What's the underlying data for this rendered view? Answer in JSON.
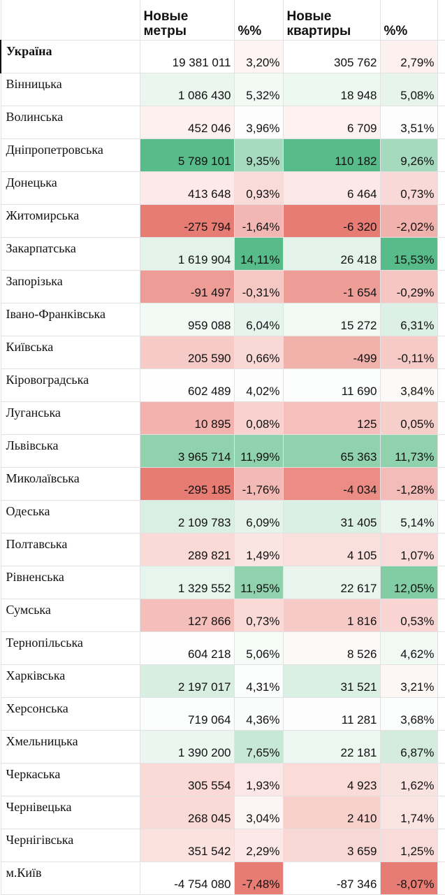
{
  "header": {
    "region_label": "",
    "col_meters": "Новые метры",
    "col_meters_pct": "%%",
    "col_flats": "Новые квартиры",
    "col_flats_pct": "%%"
  },
  "colors": {
    "green_strong": "#57bb8a",
    "red_strong": "#e67c73",
    "white": "#ffffff"
  },
  "rows": [
    {
      "name": "Україна",
      "bold": true,
      "meters": "19 381 011",
      "meters_pct": "3,20%",
      "flats": "305 762",
      "flats_pct": "2,79%",
      "bg": [
        "#ffffff",
        "#fdf4f3",
        "#ffffff",
        "#fdf1f0"
      ]
    },
    {
      "name": "Вінницька",
      "meters": "1 086 430",
      "meters_pct": "5,32%",
      "flats": "18 948",
      "flats_pct": "5,08%",
      "bg": [
        "#eaf6ef",
        "#f3faf6",
        "#eef8f2",
        "#e6f4ec"
      ]
    },
    {
      "name": "Волинська",
      "meters": "452 046",
      "meters_pct": "3,96%",
      "flats": "6 709",
      "flats_pct": "3,51%",
      "bg": [
        "#fdf1f0",
        "#fdfdfd",
        "#fdf2f1",
        "#fcfdfc"
      ]
    },
    {
      "name": "Дніпропетровська",
      "meters": "5 789 101",
      "meters_pct": "9,35%",
      "flats": "110 182",
      "flats_pct": "9,26%",
      "bg": [
        "#57bb8a",
        "#a6dbbf",
        "#57bb8a",
        "#a5dabf"
      ]
    },
    {
      "name": "Донецька",
      "meters": "413 648",
      "meters_pct": "0,93%",
      "flats": "6 464",
      "flats_pct": "0,73%",
      "bg": [
        "#fce9e8",
        "#f9dcd9",
        "#fce9e7",
        "#f9d9d7"
      ]
    },
    {
      "name": "Житомирська",
      "meters": "-275 794",
      "meters_pct": "-1,64%",
      "flats": "-6 320",
      "flats_pct": "-2,02%",
      "bg": [
        "#e67c73",
        "#f2b7b2",
        "#e67c73",
        "#f1b1ac"
      ]
    },
    {
      "name": "Закарпатська",
      "meters": "1 619 904",
      "meters_pct": "14,11%",
      "flats": "26 418",
      "flats_pct": "15,53%",
      "bg": [
        "#e3f3ea",
        "#57bb8a",
        "#e3f3ea",
        "#57bb8a"
      ]
    },
    {
      "name": "Запорізька",
      "meters": "-91 497",
      "meters_pct": "-0,31%",
      "flats": "-1 654",
      "flats_pct": "-0,29%",
      "bg": [
        "#ee9d96",
        "#f5c8c4",
        "#ee9e97",
        "#f5c6c2"
      ]
    },
    {
      "name": "Івано-Франківська",
      "meters": "959 088",
      "meters_pct": "6,04%",
      "flats": "15 272",
      "flats_pct": "6,31%",
      "bg": [
        "#f2faf5",
        "#e5f4ec",
        "#f0f9f4",
        "#dcf0e5"
      ]
    },
    {
      "name": "Київська",
      "meters": "205 590",
      "meters_pct": "0,66%",
      "flats": "-499",
      "flats_pct": "-0,11%",
      "bg": [
        "#f6cac6",
        "#f9d9d6",
        "#f2b2ac",
        "#f6cbc7"
      ]
    },
    {
      "name": "Кіровоградська",
      "meters": "602 489",
      "meters_pct": "4,02%",
      "flats": "11 690",
      "flats_pct": "3,84%",
      "bg": [
        "#fefefe",
        "#fcfdfc",
        "#fbfdfc",
        "#fdf9f8"
      ]
    },
    {
      "name": "Луганська",
      "meters": "10 895",
      "meters_pct": "0,08%",
      "flats": "125",
      "flats_pct": "0,05%",
      "bg": [
        "#f3b2ad",
        "#f7d2ce",
        "#f5c0bb",
        "#f6cfcb"
      ]
    },
    {
      "name": "Львівська",
      "meters": "3 965 714",
      "meters_pct": "11,99%",
      "flats": "65 363",
      "flats_pct": "11,73%",
      "bg": [
        "#8fd2ad",
        "#8fd2ad",
        "#8fd2ad",
        "#8fd2ad"
      ]
    },
    {
      "name": "Миколаївська",
      "meters": "-295 185",
      "meters_pct": "-1,76%",
      "flats": "-4 034",
      "flats_pct": "-1,28%",
      "bg": [
        "#e67c73",
        "#f3bab5",
        "#eb8d85",
        "#f3bcb8"
      ]
    },
    {
      "name": "Одеська",
      "meters": "2 109 783",
      "meters_pct": "6,09%",
      "flats": "31 405",
      "flats_pct": "5,14%",
      "bg": [
        "#daefe3",
        "#e4f4eb",
        "#dbf0e4",
        "#e9f5ee"
      ]
    },
    {
      "name": "Полтавська",
      "meters": "289 821",
      "meters_pct": "1,49%",
      "flats": "4 105",
      "flats_pct": "1,07%",
      "bg": [
        "#fadad7",
        "#fbe5e3",
        "#fae0dd",
        "#f9dcd9"
      ]
    },
    {
      "name": "Рівненська",
      "meters": "1 329 552",
      "meters_pct": "11,95%",
      "flats": "22 617",
      "flats_pct": "12,05%",
      "bg": [
        "#e6f5ed",
        "#8fd2ad",
        "#e9f5ee",
        "#82cda3"
      ]
    },
    {
      "name": "Сумська",
      "meters": "127 866",
      "meters_pct": "0,73%",
      "flats": "1 816",
      "flats_pct": "0,53%",
      "bg": [
        "#f4bfba",
        "#f9dad7",
        "#f6cbc7",
        "#f8d5d2"
      ]
    },
    {
      "name": "Тернопільська",
      "meters": "604 218",
      "meters_pct": "5,06%",
      "flats": "8 526",
      "flats_pct": "4,62%",
      "bg": [
        "#fefefe",
        "#f5fbf7",
        "#fdf9f8",
        "#f1f9f5"
      ]
    },
    {
      "name": "Харківська",
      "meters": "2 197 017",
      "meters_pct": "4,31%",
      "flats": "31 521",
      "flats_pct": "3,21%",
      "bg": [
        "#d7eee1",
        "#fafdfb",
        "#dbf0e4",
        "#fdf6f5"
      ]
    },
    {
      "name": "Херсонська",
      "meters": "719 064",
      "meters_pct": "4,36%",
      "flats": "11 281",
      "flats_pct": "3,68%",
      "bg": [
        "#fafdfb",
        "#f9fcfa",
        "#fcfdfc",
        "#fbfdfc"
      ]
    },
    {
      "name": "Хмельницька",
      "meters": "1 390 200",
      "meters_pct": "7,65%",
      "flats": "22 181",
      "flats_pct": "6,87%",
      "bg": [
        "#ebf6f0",
        "#c6e8d5",
        "#ecf7f1",
        "#d3ecde"
      ]
    },
    {
      "name": "Черкаська",
      "meters": "305 554",
      "meters_pct": "1,93%",
      "flats": "4 923",
      "flats_pct": "1,62%",
      "bg": [
        "#fad9d6",
        "#fbe7e5",
        "#fadbd8",
        "#fae2e0"
      ]
    },
    {
      "name": "Чернівецька",
      "meters": "268 045",
      "meters_pct": "3,04%",
      "flats": "2 410",
      "flats_pct": "1,74%",
      "bg": [
        "#fadad7",
        "#fdf5f4",
        "#f8d0cc",
        "#fae3e1"
      ]
    },
    {
      "name": "Чернігівська",
      "meters": "351 542",
      "meters_pct": "2,29%",
      "flats": "3 659",
      "flats_pct": "1,25%",
      "bg": [
        "#fbe2df",
        "#fce9e7",
        "#f9d7d4",
        "#f9dcda"
      ]
    },
    {
      "name": "м.Київ",
      "meters": "-4 754 080",
      "meters_pct": "-7,48%",
      "flats": "-87 346",
      "flats_pct": "-8,07%",
      "bg": [
        "#ffffff",
        "#e67c73",
        "#ffffff",
        "#e67c73"
      ]
    }
  ]
}
